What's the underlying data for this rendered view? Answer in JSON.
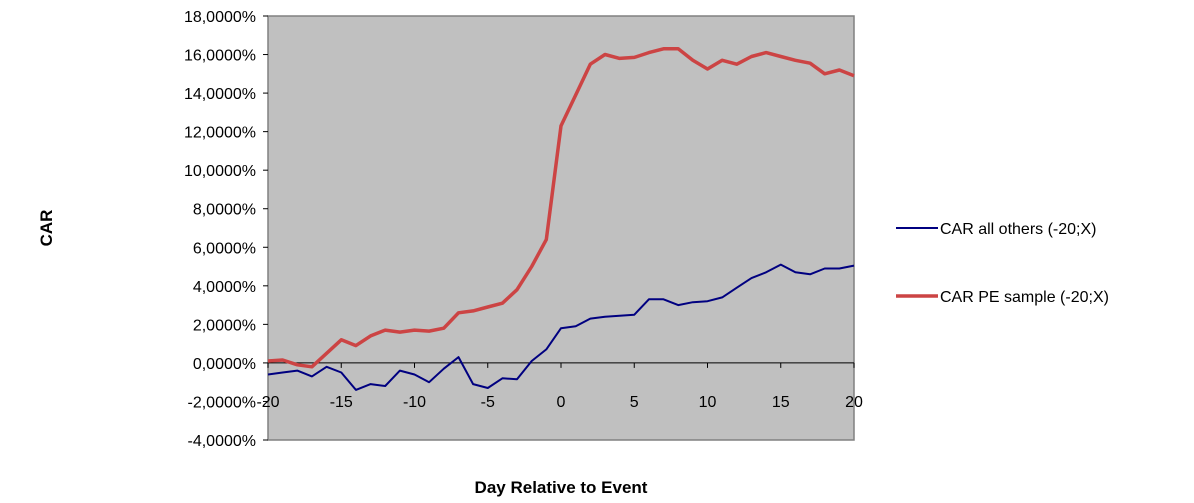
{
  "chart_data": {
    "type": "line",
    "title": "",
    "xlabel": "Day Relative to Event",
    "ylabel": "CAR",
    "xlim": [
      -20,
      20
    ],
    "ylim": [
      -4,
      18
    ],
    "x_ticks": [
      -20,
      -15,
      -10,
      -5,
      0,
      5,
      10,
      15,
      20
    ],
    "x_tick_labels": [
      "-20",
      "-15",
      "-10",
      "-5",
      "0",
      "5",
      "10",
      "15",
      "20"
    ],
    "y_ticks": [
      -4,
      -2,
      0,
      2,
      4,
      6,
      8,
      10,
      12,
      14,
      16,
      18
    ],
    "y_tick_labels": [
      "-4,0000%",
      "-2,0000%",
      "0,0000%",
      "2,0000%",
      "4,0000%",
      "6,0000%",
      "8,0000%",
      "10,0000%",
      "12,0000%",
      "14,0000%",
      "16,0000%",
      "18,0000%"
    ],
    "grid": false,
    "plot_background": "#c0c0c0",
    "legend_position": "right",
    "x": [
      -20,
      -19,
      -18,
      -17,
      -16,
      -15,
      -14,
      -13,
      -12,
      -11,
      -10,
      -9,
      -8,
      -7,
      -6,
      -5,
      -4,
      -3,
      -2,
      -1,
      0,
      1,
      2,
      3,
      4,
      5,
      6,
      7,
      8,
      9,
      10,
      11,
      12,
      13,
      14,
      15,
      16,
      17,
      18,
      19,
      20
    ],
    "series": [
      {
        "name": "CAR all others (-20;X)",
        "color": "#000080",
        "values": [
          -0.6,
          -0.5,
          -0.4,
          -0.7,
          -0.2,
          -0.5,
          -1.4,
          -1.1,
          -1.2,
          -0.4,
          -0.6,
          -1.0,
          -0.3,
          0.3,
          -1.1,
          -1.3,
          -0.8,
          -0.85,
          0.1,
          0.7,
          1.8,
          1.9,
          2.3,
          2.4,
          2.45,
          2.5,
          3.3,
          3.3,
          3.0,
          3.15,
          3.2,
          3.4,
          3.9,
          4.4,
          4.7,
          5.1,
          4.7,
          4.6,
          4.9,
          4.9,
          5.05
        ]
      },
      {
        "name": "CAR PE sample (-20;X)",
        "color": "#cc4444",
        "values": [
          0.1,
          0.15,
          -0.1,
          -0.2,
          0.5,
          1.2,
          0.9,
          1.4,
          1.7,
          1.6,
          1.7,
          1.65,
          1.8,
          2.6,
          2.7,
          2.9,
          3.1,
          3.8,
          5.0,
          6.4,
          12.3,
          13.9,
          15.5,
          16.0,
          15.8,
          15.85,
          16.1,
          16.3,
          16.3,
          15.7,
          15.25,
          15.7,
          15.5,
          15.9,
          16.1,
          15.9,
          15.7,
          15.55,
          15.0,
          15.2,
          14.9
        ]
      }
    ]
  }
}
